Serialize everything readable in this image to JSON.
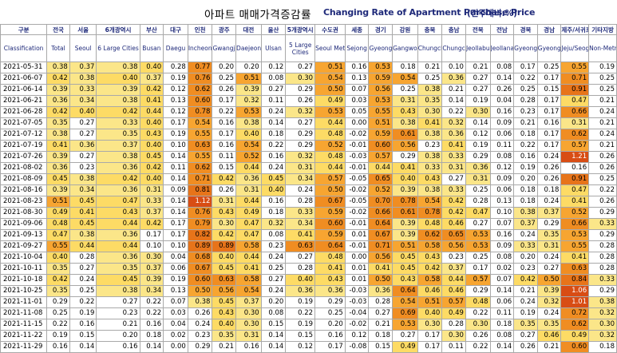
{
  "title": {
    "korean": "아파트 매매가격증감률",
    "english": "Changing Rate of Apartment Purchase Price",
    "unit": "(전주대비:%)"
  },
  "headers": {
    "korean": [
      "구분",
      "전국",
      "서울",
      "6개광역시",
      "부산",
      "대구",
      "인천",
      "광주",
      "대전",
      "울산",
      "5개광역시",
      "수도권",
      "세종",
      "경기",
      "강원",
      "충북",
      "충남",
      "전북",
      "전남",
      "경북",
      "경남",
      "제주/서귀포",
      "기타지방"
    ],
    "english": [
      "Classification",
      "Total",
      "Seoul",
      "6 Large Cities",
      "Busan",
      "Daegu",
      "Incheon",
      "Gwangju",
      "Daejeon",
      "Ulsan",
      "5 Large Cities",
      "Seoul Metropolitan",
      "Sejong",
      "Gyeonggi-do",
      "Gangwon-do",
      "Chungcheongbuk-do",
      "Chungcheongnam-do",
      "Jeollabuk-do",
      "Jeollanam-do",
      "Gyeongsangbuk-do",
      "Gyeongsangnam-do",
      "Jeju/Seogwipo",
      "Non-Metropolitan Area"
    ]
  },
  "rows": [
    {
      "date": "2021-05-31",
      "values": [
        "0.38",
        "0.37",
        "0.38",
        "0.40",
        "0.28",
        "0.77",
        "0.20",
        "0.20",
        "0.12",
        "0.27",
        "0.51",
        "0.16",
        "0.53",
        "0.18",
        "0.21",
        "0.10",
        "0.21",
        "0.08",
        "0.17",
        "0.25",
        "0.55",
        "0.19"
      ]
    },
    {
      "date": "2021-06-07",
      "values": [
        "0.42",
        "0.38",
        "0.40",
        "0.37",
        "0.19",
        "0.76",
        "0.25",
        "0.51",
        "0.08",
        "0.30",
        "0.54",
        "0.13",
        "0.59",
        "0.54",
        "0.25",
        "0.36",
        "0.27",
        "0.14",
        "0.22",
        "0.17",
        "0.71",
        "0.25"
      ]
    },
    {
      "date": "2021-06-14",
      "values": [
        "0.39",
        "0.33",
        "0.39",
        "0.42",
        "0.12",
        "0.62",
        "0.26",
        "0.39",
        "0.27",
        "0.29",
        "0.50",
        "0.07",
        "0.56",
        "0.25",
        "0.38",
        "0.21",
        "0.27",
        "0.26",
        "0.25",
        "0.15",
        "0.91",
        "0.25"
      ]
    },
    {
      "date": "2021-06-21",
      "values": [
        "0.36",
        "0.34",
        "0.38",
        "0.41",
        "0.13",
        "0.60",
        "0.17",
        "0.32",
        "0.11",
        "0.26",
        "0.49",
        "0.03",
        "0.53",
        "0.31",
        "0.35",
        "0.14",
        "0.19",
        "0.04",
        "0.28",
        "0.17",
        "0.47",
        "0.21"
      ]
    },
    {
      "date": "2021-06-28",
      "values": [
        "0.42",
        "0.40",
        "0.42",
        "0.44",
        "0.12",
        "0.78",
        "0.22",
        "0.53",
        "0.24",
        "0.32",
        "0.53",
        "0.05",
        "0.55",
        "0.43",
        "0.30",
        "0.22",
        "0.30",
        "0.16",
        "0.23",
        "0.17",
        "0.66",
        "0.24"
      ]
    },
    {
      "date": "2021-07-05",
      "values": [
        "0.35",
        "0.27",
        "0.33",
        "0.40",
        "0.17",
        "0.54",
        "0.16",
        "0.38",
        "0.14",
        "0.27",
        "0.44",
        "0.00",
        "0.51",
        "0.38",
        "0.41",
        "0.32",
        "0.14",
        "0.09",
        "0.21",
        "0.16",
        "0.31",
        "0.21"
      ]
    },
    {
      "date": "2021-07-12",
      "values": [
        "0.38",
        "0.27",
        "0.35",
        "0.43",
        "0.19",
        "0.55",
        "0.17",
        "0.40",
        "0.18",
        "0.29",
        "0.48",
        "-0.02",
        "0.59",
        "0.61",
        "0.38",
        "0.36",
        "0.12",
        "0.06",
        "0.18",
        "0.17",
        "0.62",
        "0.24"
      ]
    },
    {
      "date": "2021-07-19",
      "values": [
        "0.41",
        "0.36",
        "0.37",
        "0.40",
        "0.10",
        "0.63",
        "0.16",
        "0.54",
        "0.22",
        "0.29",
        "0.52",
        "-0.01",
        "0.60",
        "0.56",
        "0.23",
        "0.41",
        "0.19",
        "0.11",
        "0.22",
        "0.17",
        "0.57",
        "0.21"
      ]
    },
    {
      "date": "2021-07-26",
      "values": [
        "0.39",
        "0.27",
        "0.38",
        "0.45",
        "0.14",
        "0.55",
        "0.11",
        "0.52",
        "0.16",
        "0.32",
        "0.48",
        "-0.03",
        "0.57",
        "0.29",
        "0.38",
        "0.33",
        "0.29",
        "0.08",
        "0.16",
        "0.24",
        "1.21",
        "0.26"
      ]
    },
    {
      "date": "2021-08-02",
      "values": [
        "0.36",
        "0.23",
        "0.36",
        "0.42",
        "0.11",
        "0.62",
        "0.15",
        "0.44",
        "0.24",
        "0.31",
        "0.44",
        "-0.01",
        "0.44",
        "0.41",
        "0.33",
        "0.31",
        "0.36",
        "0.12",
        "0.19",
        "0.26",
        "0.16",
        "0.26"
      ]
    },
    {
      "date": "2021-08-09",
      "values": [
        "0.45",
        "0.38",
        "0.42",
        "0.40",
        "0.14",
        "0.71",
        "0.42",
        "0.36",
        "0.45",
        "0.34",
        "0.57",
        "-0.05",
        "0.65",
        "0.40",
        "0.43",
        "0.27",
        "0.31",
        "0.09",
        "0.20",
        "0.26",
        "0.91",
        "0.25"
      ]
    },
    {
      "date": "2021-08-16",
      "values": [
        "0.39",
        "0.34",
        "0.36",
        "0.31",
        "0.09",
        "0.81",
        "0.26",
        "0.31",
        "0.40",
        "0.24",
        "0.50",
        "-0.02",
        "0.52",
        "0.39",
        "0.38",
        "0.33",
        "0.25",
        "0.06",
        "0.18",
        "0.18",
        "0.47",
        "0.22"
      ]
    },
    {
      "date": "2021-08-23",
      "values": [
        "0.51",
        "0.45",
        "0.47",
        "0.33",
        "0.14",
        "1.12",
        "0.31",
        "0.44",
        "0.16",
        "0.28",
        "0.67",
        "-0.05",
        "0.70",
        "0.78",
        "0.54",
        "0.42",
        "0.28",
        "0.13",
        "0.18",
        "0.24",
        "0.41",
        "0.26"
      ]
    },
    {
      "date": "2021-08-30",
      "values": [
        "0.49",
        "0.41",
        "0.43",
        "0.37",
        "0.14",
        "0.76",
        "0.43",
        "0.49",
        "0.18",
        "0.33",
        "0.59",
        "-0.02",
        "0.66",
        "0.61",
        "0.78",
        "0.42",
        "0.47",
        "0.10",
        "0.38",
        "0.37",
        "0.52",
        "0.29"
      ]
    },
    {
      "date": "2021-09-06",
      "values": [
        "0.48",
        "0.45",
        "0.44",
        "0.42",
        "0.17",
        "0.79",
        "0.30",
        "0.47",
        "0.32",
        "0.34",
        "0.60",
        "-0.01",
        "0.64",
        "0.39",
        "0.48",
        "0.46",
        "0.27",
        "0.07",
        "0.37",
        "0.29",
        "0.66",
        "0.33"
      ]
    },
    {
      "date": "2021-09-13",
      "values": [
        "0.47",
        "0.38",
        "0.36",
        "0.17",
        "0.17",
        "0.82",
        "0.42",
        "0.47",
        "0.08",
        "0.41",
        "0.59",
        "0.01",
        "0.67",
        "0.39",
        "0.62",
        "0.65",
        "0.53",
        "0.16",
        "0.24",
        "0.35",
        "0.53",
        "0.29"
      ]
    },
    {
      "date": "2021-09-27",
      "values": [
        "0.55",
        "0.44",
        "0.44",
        "0.10",
        "0.10",
        "0.89",
        "0.89",
        "0.58",
        "0.23",
        "0.63",
        "0.64",
        "-0.01",
        "0.71",
        "0.51",
        "0.58",
        "0.56",
        "0.53",
        "0.09",
        "0.33",
        "0.31",
        "0.55",
        "0.28"
      ]
    },
    {
      "date": "2021-10-04",
      "values": [
        "0.40",
        "0.28",
        "0.36",
        "0.30",
        "0.04",
        "0.68",
        "0.40",
        "0.44",
        "0.24",
        "0.27",
        "0.48",
        "0.00",
        "0.56",
        "0.45",
        "0.43",
        "0.23",
        "0.25",
        "0.08",
        "0.20",
        "0.24",
        "0.41",
        "0.28"
      ]
    },
    {
      "date": "2021-10-11",
      "values": [
        "0.35",
        "0.27",
        "0.35",
        "0.37",
        "0.06",
        "0.67",
        "0.45",
        "0.41",
        "0.25",
        "0.28",
        "0.41",
        "0.01",
        "0.41",
        "0.45",
        "0.42",
        "0.37",
        "0.17",
        "0.02",
        "0.23",
        "0.27",
        "0.63",
        "0.28"
      ]
    },
    {
      "date": "2021-10-18",
      "values": [
        "0.42",
        "0.24",
        "0.45",
        "0.39",
        "0.19",
        "0.60",
        "0.63",
        "0.58",
        "0.27",
        "0.40",
        "0.43",
        "0.01",
        "0.50",
        "0.43",
        "0.58",
        "0.44",
        "0.57",
        "0.07",
        "0.42",
        "0.50",
        "0.84",
        "0.33"
      ]
    },
    {
      "date": "2021-10-25",
      "values": [
        "0.35",
        "0.25",
        "0.38",
        "0.34",
        "0.13",
        "0.50",
        "0.56",
        "0.54",
        "0.24",
        "0.36",
        "0.36",
        "-0.03",
        "0.36",
        "0.64",
        "0.46",
        "0.46",
        "0.29",
        "0.14",
        "0.21",
        "0.39",
        "1.06",
        "0.29"
      ]
    },
    {
      "date": "2021-11-01",
      "values": [
        "0.29",
        "0.22",
        "0.27",
        "0.22",
        "0.07",
        "0.38",
        "0.45",
        "0.37",
        "0.20",
        "0.19",
        "0.29",
        "-0.03",
        "0.28",
        "0.54",
        "0.51",
        "0.57",
        "0.48",
        "0.06",
        "0.24",
        "0.32",
        "1.01",
        "0.38"
      ]
    },
    {
      "date": "2021-11-08",
      "values": [
        "0.25",
        "0.19",
        "0.23",
        "0.22",
        "0.03",
        "0.26",
        "0.43",
        "0.30",
        "0.08",
        "0.22",
        "0.25",
        "-0.04",
        "0.27",
        "0.69",
        "0.40",
        "0.49",
        "0.22",
        "0.11",
        "0.19",
        "0.24",
        "0.72",
        "0.32"
      ]
    },
    {
      "date": "2021-11-15",
      "values": [
        "0.22",
        "0.16",
        "0.21",
        "0.16",
        "0.04",
        "0.24",
        "0.40",
        "0.30",
        "0.15",
        "0.19",
        "0.20",
        "-0.02",
        "0.21",
        "0.53",
        "0.30",
        "0.28",
        "0.30",
        "0.18",
        "0.35",
        "0.35",
        "0.62",
        "0.30"
      ]
    },
    {
      "date": "2021-11-22",
      "values": [
        "0.19",
        "0.15",
        "0.20",
        "0.18",
        "0.02",
        "0.23",
        "0.35",
        "0.31",
        "0.14",
        "0.15",
        "0.16",
        "0.12",
        "0.18",
        "0.27",
        "0.17",
        "0.30",
        "0.26",
        "0.08",
        "0.27",
        "0.46",
        "0.49",
        "0.32"
      ]
    },
    {
      "date": "2021-11-29",
      "values": [
        "0.16",
        "0.14",
        "0.16",
        "0.14",
        "0.00",
        "0.29",
        "0.21",
        "0.16",
        "0.14",
        "0.12",
        "0.17",
        "-0.08",
        "0.15",
        "0.49",
        "0.17",
        "0.11",
        "0.22",
        "0.14",
        "0.26",
        "0.21",
        "0.60",
        "0.18"
      ]
    }
  ]
}
